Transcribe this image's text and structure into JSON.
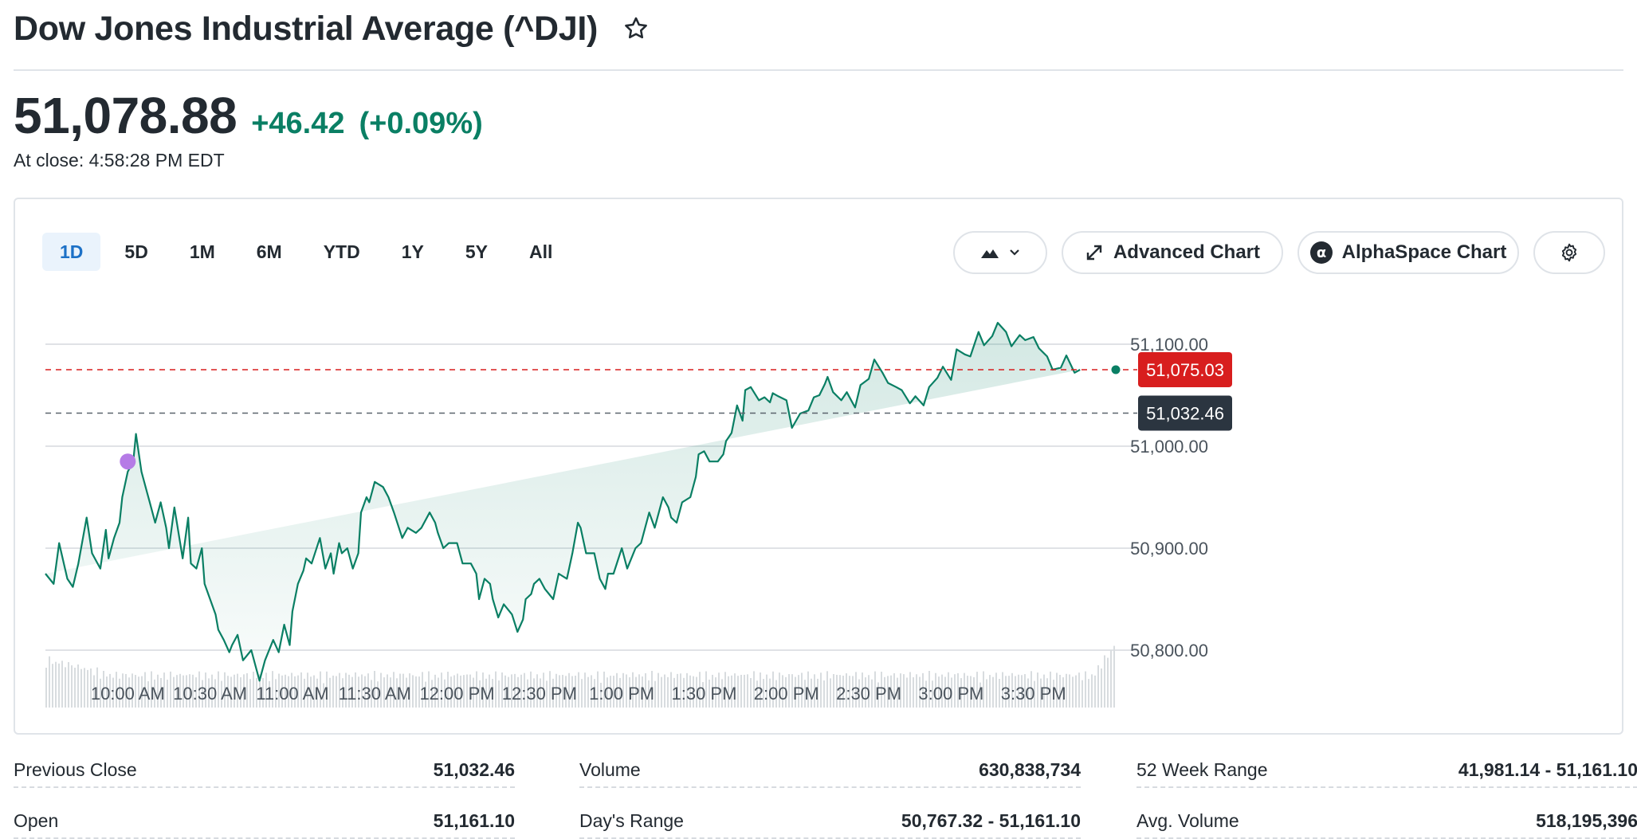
{
  "header": {
    "title": "Dow Jones Industrial Average (^DJI)",
    "price": "51,078.88",
    "change": "+46.42",
    "change_pct": "(+0.09%)",
    "close_time": "At close: 4:58:28 PM EDT"
  },
  "ranges": [
    "1D",
    "5D",
    "1M",
    "6M",
    "YTD",
    "1Y",
    "5Y",
    "All"
  ],
  "active_range": "1D",
  "toolbar": {
    "chart_type_icon": "mountain-chart-icon",
    "advanced_chart_label": "Advanced Chart",
    "alphaspace_chart_label": "AlphaSpace Chart",
    "settings_icon": "gear-icon"
  },
  "colors": {
    "positive": "#0a7f64",
    "accent_blue": "#1d71c7",
    "line": "#0a7f64",
    "current_price_tag": "#d81e1e",
    "prev_close_tag": "#2b3540",
    "event_marker": "#b57be6"
  },
  "chart_data": {
    "type": "area",
    "title": "",
    "xlabel": "",
    "ylabel": "",
    "x_tick_labels": [
      "10:00 AM",
      "10:30 AM",
      "11:00 AM",
      "11:30 AM",
      "12:00 PM",
      "12:30 PM",
      "1:00 PM",
      "1:30 PM",
      "2:00 PM",
      "2:30 PM",
      "3:00 PM",
      "3:30 PM"
    ],
    "y_tick_labels": [
      "51,100.00",
      "51,000.00",
      "50,900.00",
      "50,800.00"
    ],
    "y_ticks": [
      51100,
      51000,
      50900,
      50800
    ],
    "ylim": [
      50775,
      51125
    ],
    "x_range_minutes": [
      570,
      960
    ],
    "current_price": 51075.03,
    "current_price_label": "51,075.03",
    "previous_close": 51032.46,
    "previous_close_label": "51,032.46",
    "event_marker": {
      "time_min": 600,
      "value": 50985
    },
    "series": [
      {
        "time_min": [
          570,
          573,
          575,
          578,
          580,
          582,
          585,
          587,
          590,
          592,
          593,
          595,
          597,
          598,
          600,
          602,
          603,
          605,
          607,
          608,
          610,
          612,
          614,
          615,
          617,
          620,
          622,
          623,
          625,
          627,
          628,
          630,
          632,
          633,
          635,
          637,
          638,
          640,
          642,
          645,
          648,
          650,
          653,
          655,
          657,
          659,
          660,
          662,
          664,
          665,
          667,
          670,
          672,
          674,
          675,
          677,
          678,
          680,
          682,
          684,
          685,
          687,
          688,
          690,
          693,
          695,
          697,
          700,
          702,
          705,
          707,
          710,
          712,
          713,
          715,
          717,
          720,
          722,
          725,
          727,
          728,
          730,
          732,
          733,
          735,
          737,
          740,
          742,
          744,
          745,
          747,
          748,
          750,
          752,
          755,
          757,
          760,
          762,
          764,
          765,
          767,
          770,
          772,
          774,
          775,
          777,
          780,
          782,
          785,
          787,
          790,
          792,
          795,
          797,
          798,
          800,
          802,
          805,
          807,
          808,
          810,
          812,
          815,
          817,
          818,
          820,
          822,
          824,
          825,
          827,
          830,
          832,
          834,
          835,
          837,
          840,
          842,
          845,
          848,
          850,
          852,
          854,
          855,
          857,
          860,
          862,
          865,
          867,
          870,
          872,
          875,
          877,
          880,
          882,
          885,
          887,
          890,
          892,
          895,
          897,
          900,
          902,
          905,
          907,
          910,
          912,
          915,
          917,
          920,
          922,
          925,
          927,
          930,
          932,
          935,
          937,
          940,
          942,
          945,
          947,
          950,
          952,
          955,
          957,
          958,
          960
        ],
        "values": [
          50875,
          50865,
          50905,
          50870,
          50862,
          50885,
          50930,
          50895,
          50880,
          50918,
          50890,
          50910,
          50925,
          50950,
          50975,
          50985,
          51012,
          50975,
          50955,
          50945,
          50925,
          50945,
          50920,
          50900,
          50940,
          50890,
          50930,
          50885,
          50880,
          50900,
          50865,
          50850,
          50835,
          50820,
          50810,
          50798,
          50805,
          50815,
          50790,
          50800,
          50770,
          50790,
          50810,
          50798,
          50825,
          50805,
          50838,
          50865,
          50878,
          50890,
          50885,
          50910,
          50880,
          50895,
          50875,
          50905,
          50895,
          50900,
          50880,
          50895,
          50935,
          50950,
          50945,
          50965,
          50960,
          50950,
          50935,
          50910,
          50920,
          50915,
          50920,
          50935,
          50925,
          50915,
          50900,
          50905,
          50905,
          50885,
          50885,
          50875,
          50850,
          50870,
          50865,
          50850,
          50832,
          50845,
          50835,
          50818,
          50830,
          50850,
          50855,
          50865,
          50870,
          50860,
          50850,
          50875,
          50870,
          50895,
          50925,
          50920,
          50895,
          50895,
          50870,
          50860,
          50875,
          50875,
          50900,
          50880,
          50900,
          50905,
          50935,
          50920,
          50950,
          50940,
          50930,
          50925,
          50945,
          50950,
          50970,
          50992,
          50995,
          50985,
          50985,
          50992,
          51005,
          51013,
          51040,
          51025,
          51055,
          51058,
          51045,
          51048,
          51043,
          51052,
          51049,
          51045,
          51018,
          51032,
          51035,
          51048,
          51050,
          51061,
          51068,
          51053,
          51045,
          51053,
          51038,
          51060,
          51066,
          51085,
          51072,
          51062,
          51058,
          51055,
          51042,
          51049,
          51040,
          51058,
          51067,
          51078,
          51065,
          51095,
          51090,
          51088,
          51112,
          51099,
          51108,
          51121,
          51112,
          51098,
          51109,
          51104,
          51107,
          51096,
          51088,
          51075,
          51077,
          51089,
          51072,
          51075
        ]
      }
    ]
  },
  "stats": [
    {
      "label": "Previous Close",
      "value": "51,032.46"
    },
    {
      "label": "Volume",
      "value": "630,838,734"
    },
    {
      "label": "52 Week Range",
      "value": "41,981.14 - 51,161.10"
    },
    {
      "label": "Open",
      "value": "51,161.10"
    },
    {
      "label": "Day's Range",
      "value": "50,767.32 - 51,161.10"
    },
    {
      "label": "Avg. Volume",
      "value": "518,195,396"
    }
  ]
}
